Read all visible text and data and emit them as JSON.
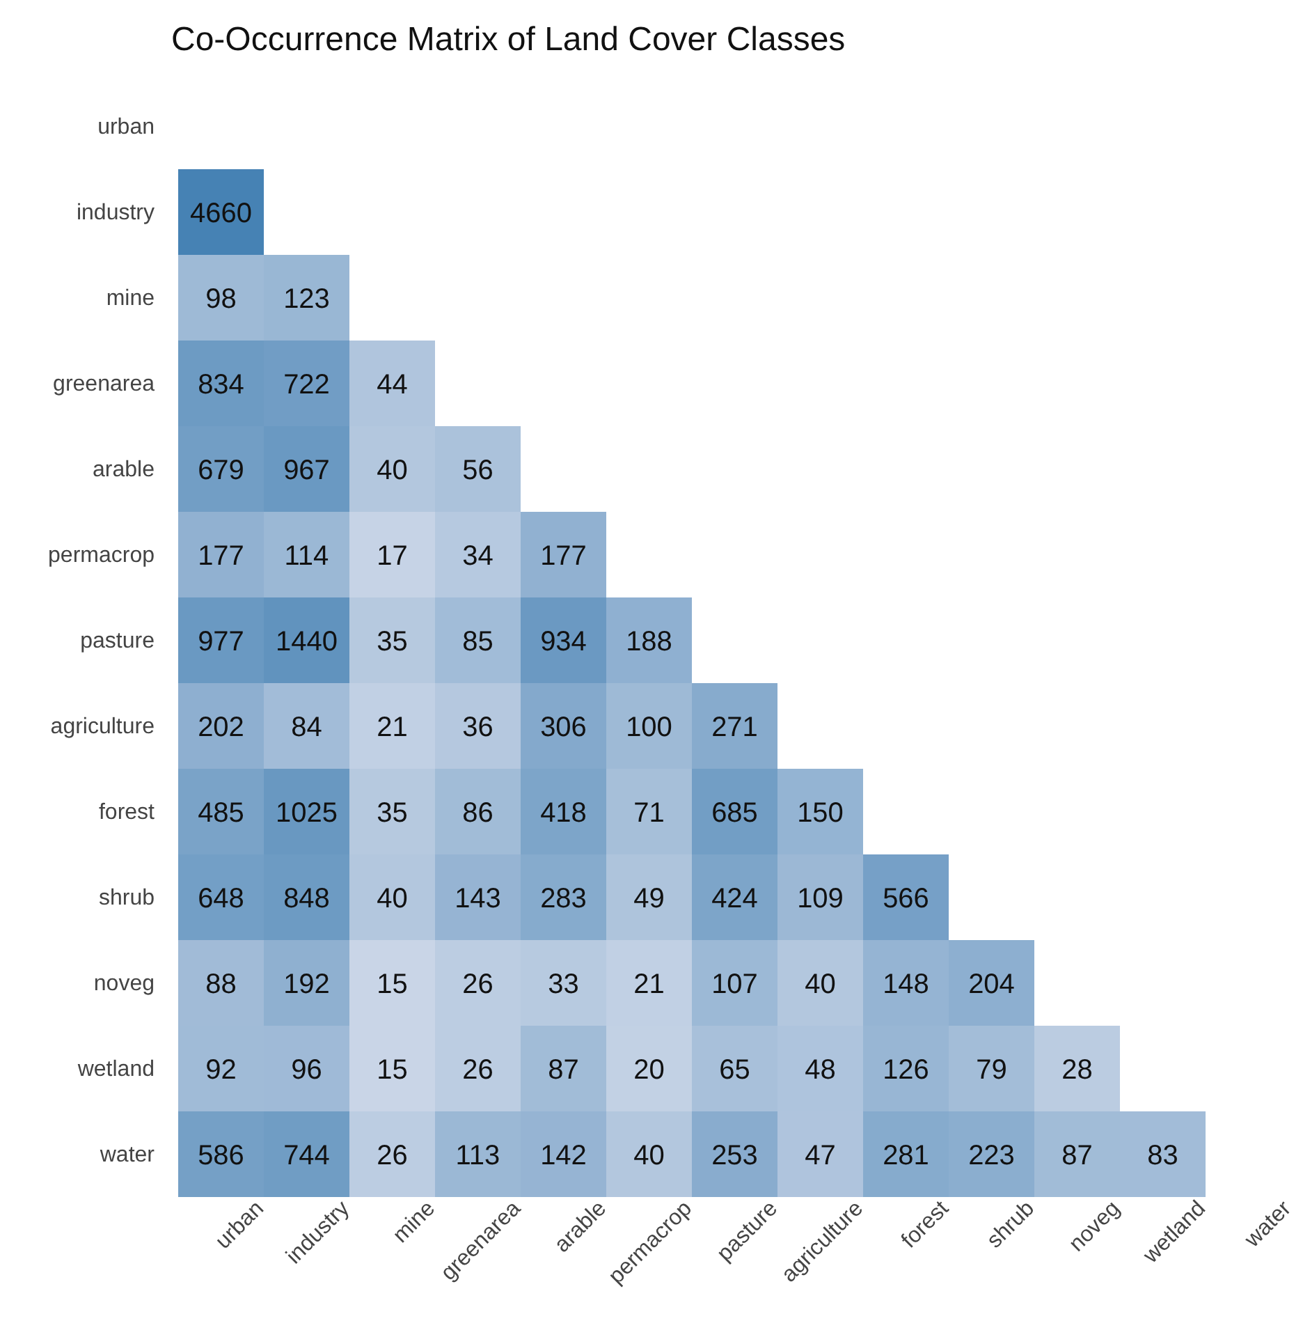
{
  "chart_data": {
    "type": "heatmap",
    "title": "Co-Occurrence Matrix of Land Cover Classes",
    "categories": [
      "urban",
      "industry",
      "mine",
      "greenarea",
      "arable",
      "permacrop",
      "pasture",
      "agriculture",
      "forest",
      "shrub",
      "noveg",
      "wetland",
      "water"
    ],
    "y_categories": [
      "urban",
      "industry",
      "mine",
      "greenarea",
      "arable",
      "permacrop",
      "pasture",
      "agriculture",
      "forest",
      "shrub",
      "noveg",
      "wetland",
      "water"
    ],
    "cells": [
      [
        null,
        null,
        null,
        null,
        null,
        null,
        null,
        null,
        null,
        null,
        null,
        null,
        null
      ],
      [
        4660,
        null,
        null,
        null,
        null,
        null,
        null,
        null,
        null,
        null,
        null,
        null,
        null
      ],
      [
        98,
        123,
        null,
        null,
        null,
        null,
        null,
        null,
        null,
        null,
        null,
        null,
        null
      ],
      [
        834,
        722,
        44,
        null,
        null,
        null,
        null,
        null,
        null,
        null,
        null,
        null,
        null
      ],
      [
        679,
        967,
        40,
        56,
        null,
        null,
        null,
        null,
        null,
        null,
        null,
        null,
        null
      ],
      [
        177,
        114,
        17,
        34,
        177,
        null,
        null,
        null,
        null,
        null,
        null,
        null,
        null
      ],
      [
        977,
        1440,
        35,
        85,
        934,
        188,
        null,
        null,
        null,
        null,
        null,
        null,
        null
      ],
      [
        202,
        84,
        21,
        36,
        306,
        100,
        271,
        null,
        null,
        null,
        null,
        null,
        null
      ],
      [
        485,
        1025,
        35,
        86,
        418,
        71,
        685,
        150,
        null,
        null,
        null,
        null,
        null
      ],
      [
        648,
        848,
        40,
        143,
        283,
        49,
        424,
        109,
        566,
        null,
        null,
        null,
        null
      ],
      [
        88,
        192,
        15,
        26,
        33,
        21,
        107,
        40,
        148,
        204,
        null,
        null,
        null
      ],
      [
        92,
        96,
        15,
        26,
        87,
        20,
        65,
        48,
        126,
        79,
        28,
        null,
        null
      ],
      [
        586,
        744,
        26,
        113,
        142,
        40,
        253,
        47,
        281,
        223,
        87,
        83,
        null
      ]
    ],
    "colors": [
      "#c9d5e7",
      "#4682b4"
    ],
    "data_labels": true
  }
}
